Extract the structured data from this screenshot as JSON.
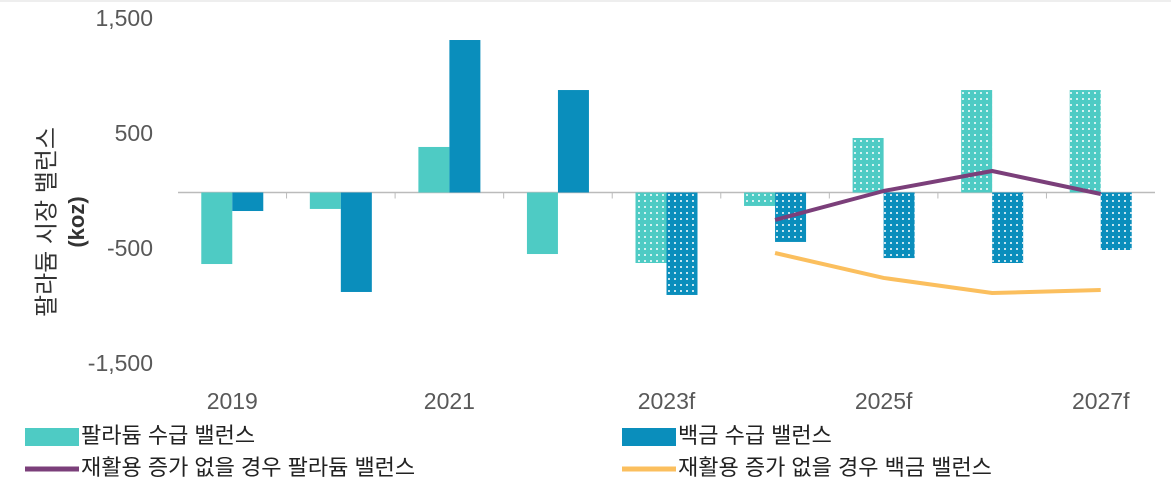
{
  "chart_data": {
    "type": "bar",
    "y_label": [
      "팔라듐 시장 밸런스",
      "(koz)"
    ],
    "categories": [
      "2019",
      null,
      "2021",
      null,
      "2023f",
      null,
      "2025f",
      null,
      "2027f"
    ],
    "ylim": [
      -1500,
      1500
    ],
    "yticks": [
      {
        "value": 1500,
        "label": "1,500"
      },
      500,
      -500,
      {
        "value": -1500,
        "label": "-1,500"
      }
    ],
    "series": [
      {
        "name": "팔라듐 수급 밸런스",
        "type": "bar",
        "color": "#4ecbc4",
        "values": [
          -622,
          -143,
          396,
          -535,
          -613,
          -117,
          474,
          891,
          891
        ],
        "patterned": [
          false,
          false,
          false,
          false,
          true,
          true,
          true,
          true,
          true
        ]
      },
      {
        "name": "백금 수급 밸런스",
        "type": "bar",
        "color": "#0a8ebc",
        "values": [
          -161,
          -865,
          1326,
          891,
          -891,
          -430,
          -570,
          -613,
          -500
        ],
        "patterned": [
          false,
          false,
          false,
          false,
          true,
          true,
          true,
          true,
          true
        ]
      },
      {
        "name": "재활용 증가 없을 경우 팔라듐 밸런스",
        "type": "line",
        "color": "#7b3f7a",
        "values": [
          null,
          null,
          null,
          null,
          null,
          -239,
          13,
          187,
          -13
        ]
      },
      {
        "name": "재활용 증가 없을 경우 백금 밸런스",
        "type": "line",
        "color": "#fbbf5e",
        "values": [
          null,
          null,
          null,
          null,
          null,
          -526,
          -743,
          -874,
          -848
        ]
      }
    ]
  }
}
